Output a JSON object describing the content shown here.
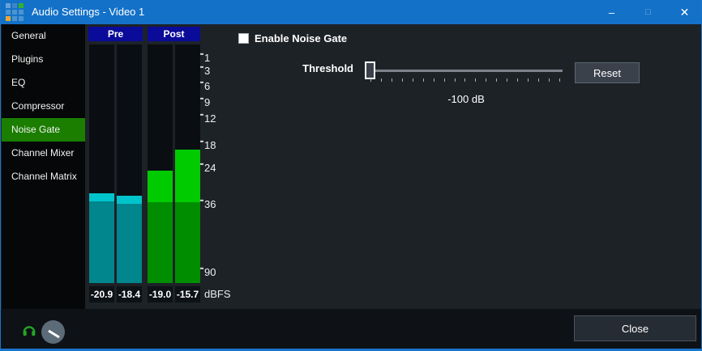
{
  "titlebar": {
    "title": "Audio Settings - Video 1",
    "app_icon_colors": [
      "#66a3d9",
      "#3e85c4",
      "#2fb32c",
      "#4c94d0",
      "#4c94d0",
      "#4c94d0",
      "#f0a732",
      "#4c94d0",
      "#4c94d0"
    ],
    "controls": {
      "minimize": "–",
      "maximize": "□",
      "close": "✕"
    }
  },
  "sidebar": {
    "items": [
      {
        "label": "General",
        "selected": false
      },
      {
        "label": "Plugins",
        "selected": false
      },
      {
        "label": "EQ",
        "selected": false
      },
      {
        "label": "Compressor",
        "selected": false
      },
      {
        "label": "Noise Gate",
        "selected": true
      },
      {
        "label": "Channel Mixer",
        "selected": false
      },
      {
        "label": "Channel Matrix",
        "selected": false
      }
    ],
    "selected_color": "#1b7e00"
  },
  "meters": {
    "group_labels": [
      "Pre",
      "Post"
    ],
    "header_color": "#0b0b99",
    "scale_ticks": [
      {
        "label": "1",
        "pos_pct": 5.8
      },
      {
        "label": "3",
        "pos_pct": 11.2
      },
      {
        "label": "6",
        "pos_pct": 17.6
      },
      {
        "label": "9",
        "pos_pct": 24.4
      },
      {
        "label": "12",
        "pos_pct": 31.2
      },
      {
        "label": "18",
        "pos_pct": 42.4
      },
      {
        "label": "24",
        "pos_pct": 51.9
      },
      {
        "label": "36",
        "pos_pct": 67.1
      },
      {
        "label": "90",
        "pos_pct": 95.6
      }
    ],
    "bars": [
      {
        "channel": "pre-left",
        "value_label": "-20.9",
        "top_pct": 62.4,
        "split_pct": 65.8,
        "bright_color": "#00c4cc",
        "dark_color": "#00868c"
      },
      {
        "channel": "pre-right",
        "value_label": "-18.4",
        "top_pct": 63.4,
        "split_pct": 66.8,
        "bright_color": "#00c4cc",
        "dark_color": "#00868c"
      },
      {
        "channel": "post-left",
        "value_label": "-19.0",
        "top_pct": 52.9,
        "split_pct": 66.1,
        "bright_color": "#00cb00",
        "dark_color": "#008d00"
      },
      {
        "channel": "post-right",
        "value_label": "-15.7",
        "top_pct": 44.1,
        "split_pct": 66.1,
        "bright_color": "#00cb00",
        "dark_color": "#008d00"
      }
    ],
    "unit_label": "dBFS"
  },
  "noise_gate": {
    "enable_label": "Enable Noise Gate",
    "enabled": false,
    "threshold_label": "Threshold",
    "threshold_value": "-100 dB",
    "reset_label": "Reset",
    "slider_tick_count": 19
  },
  "footer": {
    "close_label": "Close",
    "headphones_color": "#23a527"
  }
}
